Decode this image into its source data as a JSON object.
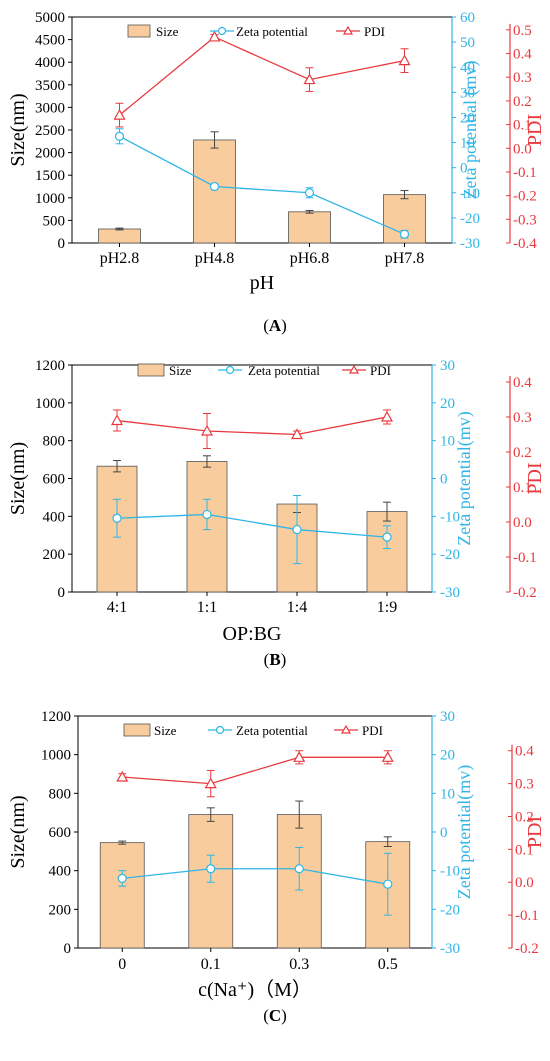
{
  "colors": {
    "bar_fill": "#f9cc9d",
    "bar_stroke": "#555555",
    "zeta": "#2fb6e6",
    "pdi": "#e8393e",
    "axis": "#000000"
  },
  "chart_data": [
    {
      "type": "bar",
      "panel_label": "(A)",
      "xlabel": "pH",
      "ylabel_left": "Size(nm)",
      "ylabel_zeta": "Zeta potential (mv)",
      "ylabel_pdi": "PDI",
      "categories": [
        "pH2.8",
        "pH4.8",
        "pH6.8",
        "pH7.8"
      ],
      "ylim_left": [
        0,
        5000
      ],
      "yticks_left": [
        0,
        500,
        1000,
        1500,
        2000,
        2500,
        3000,
        3500,
        4000,
        4500,
        5000
      ],
      "ylim_zeta": [
        -30,
        60
      ],
      "yticks_zeta": [
        -30,
        -20,
        -10,
        0,
        10,
        20,
        30,
        40,
        50,
        60
      ],
      "ylim_pdi": [
        -0.4,
        0.55
      ],
      "yticks_pdi": [
        -0.4,
        -0.3,
        -0.2,
        -0.1,
        0.0,
        0.1,
        0.2,
        0.3,
        0.4,
        0.5
      ],
      "legend": [
        "Size",
        "Zeta potential",
        "PDI"
      ],
      "series": [
        {
          "name": "Size",
          "axis": "left",
          "kind": "bar",
          "values": [
            310,
            2280,
            690,
            1070
          ],
          "errors": [
            20,
            180,
            30,
            90
          ]
        },
        {
          "name": "Zeta potential",
          "axis": "zeta",
          "kind": "line",
          "values": [
            12.5,
            -7.5,
            -10,
            -26.5
          ],
          "errors": [
            3,
            1,
            2,
            1.5
          ]
        },
        {
          "name": "PDI",
          "axis": "pdi",
          "kind": "line",
          "values": [
            0.14,
            0.47,
            0.29,
            0.37
          ],
          "errors": [
            0.05,
            0.01,
            0.05,
            0.05
          ]
        }
      ]
    },
    {
      "type": "bar",
      "panel_label": "(B)",
      "xlabel": "OP:BG",
      "ylabel_left": "Size(nm)",
      "ylabel_zeta": "Zeta potential(mv)",
      "ylabel_pdi": "PDI",
      "categories": [
        "4:1",
        "1:1",
        "1:4",
        "1:9"
      ],
      "ylim_left": [
        0,
        1200
      ],
      "yticks_left": [
        0,
        200,
        400,
        600,
        800,
        1000,
        1200
      ],
      "ylim_zeta": [
        -30,
        30
      ],
      "yticks_zeta": [
        -30,
        -20,
        -10,
        0,
        10,
        20,
        30
      ],
      "ylim_pdi": [
        -0.2,
        0.42
      ],
      "yticks_pdi": [
        -0.2,
        -0.1,
        0.0,
        0.1,
        0.2,
        0.3,
        0.4
      ],
      "legend": [
        "Size",
        "Zeta potential",
        "PDI"
      ],
      "series": [
        {
          "name": "Size",
          "axis": "left",
          "kind": "bar",
          "values": [
            665,
            690,
            465,
            425
          ],
          "errors": [
            30,
            30,
            45,
            50
          ]
        },
        {
          "name": "Zeta potential",
          "axis": "zeta",
          "kind": "line",
          "values": [
            -10.5,
            -9.5,
            -13.5,
            -15.5
          ],
          "errors": [
            5,
            4,
            9,
            3
          ]
        },
        {
          "name": "PDI",
          "axis": "pdi",
          "kind": "line",
          "values": [
            0.29,
            0.26,
            0.25,
            0.3
          ],
          "errors": [
            0.03,
            0.05,
            0.01,
            0.02
          ]
        }
      ]
    },
    {
      "type": "bar",
      "panel_label": "(C)",
      "xlabel": "c(Na⁺)（M）",
      "ylabel_left": "Size(nm)",
      "ylabel_zeta": "Zeta potential(mv)",
      "ylabel_pdi": "PDI",
      "categories": [
        "0",
        "0.1",
        "0.3",
        "0.5"
      ],
      "ylim_left": [
        0,
        1200
      ],
      "yticks_left": [
        0,
        200,
        400,
        600,
        800,
        1000,
        1200
      ],
      "ylim_zeta": [
        -30,
        30
      ],
      "yticks_zeta": [
        -30,
        -20,
        -10,
        0,
        10,
        20,
        30
      ],
      "ylim_pdi": [
        -0.2,
        0.46
      ],
      "yticks_pdi": [
        -0.2,
        -0.1,
        0.0,
        0.1,
        0.2,
        0.3,
        0.4
      ],
      "legend": [
        "Size",
        "Zeta potential",
        "PDI"
      ],
      "series": [
        {
          "name": "Size",
          "axis": "left",
          "kind": "bar",
          "values": [
            545,
            690,
            690,
            550
          ],
          "errors": [
            8,
            35,
            70,
            25
          ]
        },
        {
          "name": "Zeta potential",
          "axis": "zeta",
          "kind": "line",
          "values": [
            -12,
            -9.5,
            -9.5,
            -13.5
          ],
          "errors": [
            2,
            3.5,
            5.5,
            8
          ]
        },
        {
          "name": "PDI",
          "axis": "pdi",
          "kind": "line",
          "values": [
            0.32,
            0.3,
            0.38,
            0.38
          ],
          "errors": [
            0.01,
            0.04,
            0.02,
            0.02
          ]
        }
      ]
    }
  ]
}
